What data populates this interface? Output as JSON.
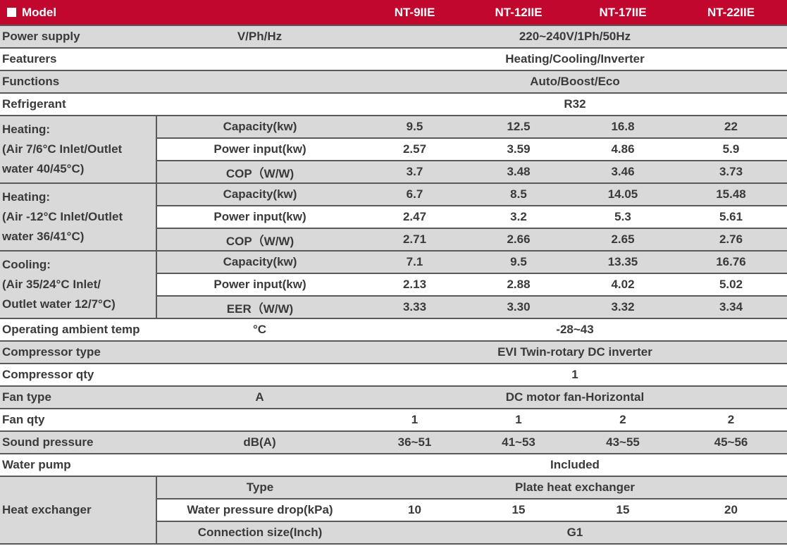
{
  "header": {
    "label": "Model",
    "models": [
      "NT-9IIE",
      "NT-12IIE",
      "NT-17IIE",
      "NT-22IIE"
    ]
  },
  "rows": {
    "power_supply": {
      "label": "Power supply",
      "unit": "V/Ph/Hz",
      "value": "220~240V/1Ph/50Hz"
    },
    "featurers": {
      "label": "Featurers",
      "value": "Heating/Cooling/Inverter"
    },
    "functions": {
      "label": "Functions",
      "value": "Auto/Boost/Eco"
    },
    "refrigerant": {
      "label": "Refrigerant",
      "value": "R32"
    },
    "heating1": {
      "label": [
        "Heating:",
        "(Air 7/6°C Inlet/Outlet",
        "water 40/45°C)"
      ],
      "rows": [
        {
          "label": "Capacity(kw)",
          "values": [
            "9.5",
            "12.5",
            "16.8",
            "22"
          ]
        },
        {
          "label": "Power input(kw)",
          "values": [
            "2.57",
            "3.59",
            "4.86",
            "5.9"
          ]
        },
        {
          "label": "COP（W/W)",
          "values": [
            "3.7",
            "3.48",
            "3.46",
            "3.73"
          ]
        }
      ]
    },
    "heating2": {
      "label": [
        "Heating:",
        "(Air -12°C Inlet/Outlet",
        "water 36/41°C)"
      ],
      "rows": [
        {
          "label": "Capacity(kw)",
          "values": [
            "6.7",
            "8.5",
            "14.05",
            "15.48"
          ]
        },
        {
          "label": "Power input(kw)",
          "values": [
            "2.47",
            "3.2",
            "5.3",
            "5.61"
          ]
        },
        {
          "label": "COP（W/W)",
          "values": [
            "2.71",
            "2.66",
            "2.65",
            "2.76"
          ]
        }
      ]
    },
    "cooling": {
      "label": [
        "Cooling:",
        "(Air 35/24°C Inlet/",
        "Outlet water 12/7°C)"
      ],
      "rows": [
        {
          "label": "Capacity(kw)",
          "values": [
            "7.1",
            "9.5",
            "13.35",
            "16.76"
          ]
        },
        {
          "label": "Power input(kw)",
          "values": [
            "2.13",
            "2.88",
            "4.02",
            "5.02"
          ]
        },
        {
          "label": "EER（W/W)",
          "values": [
            "3.33",
            "3.30",
            "3.32",
            "3.34"
          ]
        }
      ]
    },
    "ambient": {
      "label": "Operating ambient temp",
      "unit": "°C",
      "value": "-28~43"
    },
    "compressor_type": {
      "label": "Compressor type",
      "value": "EVI Twin-rotary DC inverter"
    },
    "compressor_qty": {
      "label": "Compressor qty",
      "value": "1"
    },
    "fan_type": {
      "label": "Fan type",
      "unit": "A",
      "value": "DC motor fan-Horizontal"
    },
    "fan_qty": {
      "label": "Fan qty",
      "values": [
        "1",
        "1",
        "2",
        "2"
      ]
    },
    "sound": {
      "label": "Sound pressure",
      "unit": "dB(A)",
      "values": [
        "36~51",
        "41~53",
        "43~55",
        "45~56"
      ]
    },
    "water_pump": {
      "label": "Water pump",
      "value": "Included"
    },
    "heat_exchanger": {
      "label": "Heat exchanger",
      "type": {
        "label": "Type",
        "value": "Plate heat exchanger"
      },
      "pressure_drop": {
        "label": "Water pressure drop(kPa)",
        "values": [
          "10",
          "15",
          "15",
          "20"
        ]
      },
      "connection": {
        "label": "Connection size(Inch)",
        "value": "G1"
      }
    }
  }
}
